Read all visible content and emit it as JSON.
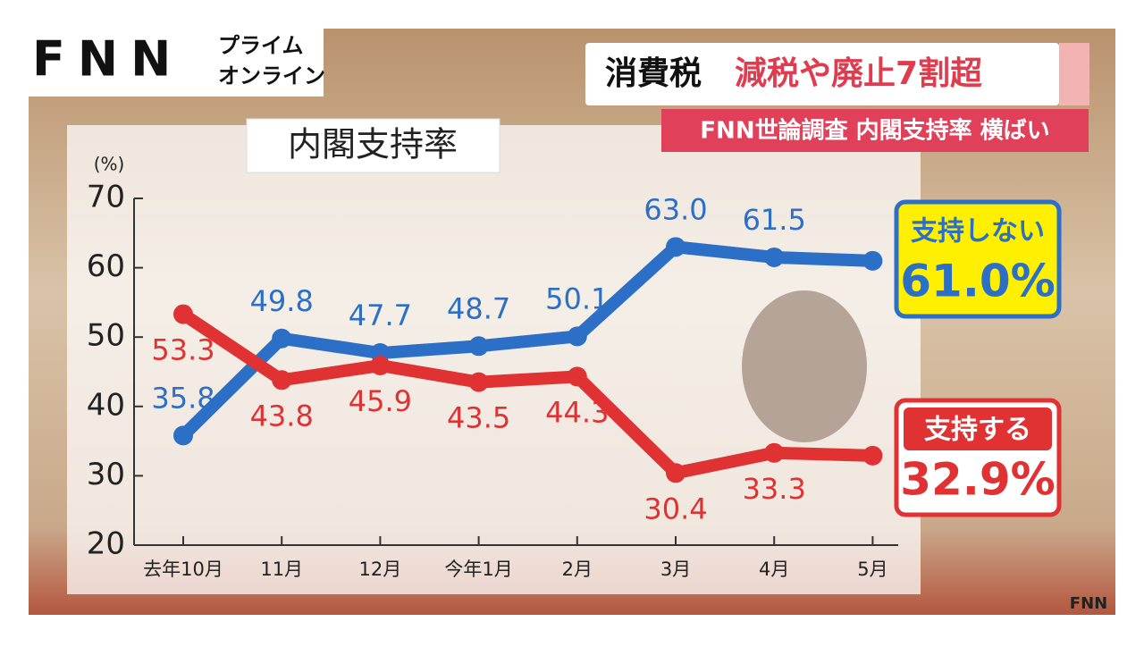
{
  "logo": {
    "brand": "FNN",
    "line1": "プライム",
    "line2": "オンライン"
  },
  "headline": {
    "topic": "消費税",
    "main": "減税や廃止7割超",
    "sub": "FNN世論調査 内閣支持率 横ばい"
  },
  "watermark": "FNN",
  "chart_data": {
    "type": "line",
    "title": "内閣支持率",
    "y_unit": "(%)",
    "categories": [
      "去年10月",
      "11月",
      "12月",
      "今年1月",
      "2月",
      "3月",
      "4月",
      "5月"
    ],
    "series": [
      {
        "name": "支持しない",
        "color": "#2b6fc6",
        "values": [
          35.8,
          49.8,
          47.7,
          48.7,
          50.1,
          63.0,
          61.5,
          61.0
        ],
        "value_labels": [
          "35.8",
          "49.8",
          "47.7",
          "48.7",
          "50.1",
          "63.0",
          "61.5",
          "61.0%"
        ]
      },
      {
        "name": "支持する",
        "color": "#e03232",
        "values": [
          53.3,
          43.8,
          45.9,
          43.5,
          44.3,
          30.4,
          33.3,
          32.9
        ],
        "value_labels": [
          "53.3",
          "43.8",
          "45.9",
          "43.5",
          "44.3",
          "30.4",
          "33.3",
          "32.9%"
        ]
      }
    ],
    "ylim": [
      20,
      70
    ],
    "yticks": [
      20,
      30,
      40,
      50,
      60,
      70
    ],
    "grid": false
  }
}
